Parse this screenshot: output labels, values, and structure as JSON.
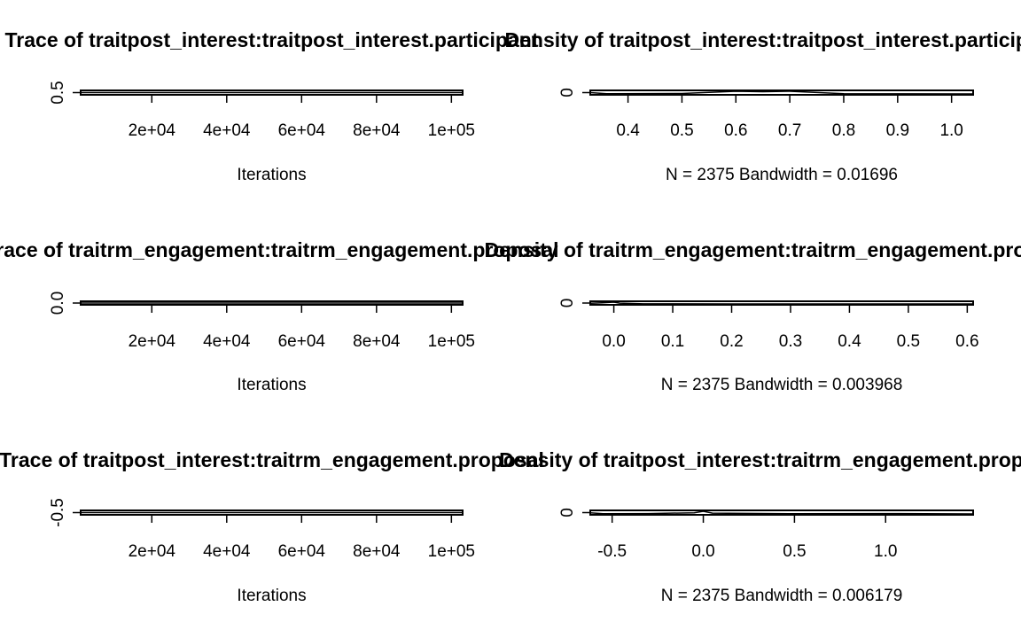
{
  "chart_data": [
    {
      "type": "line",
      "title": "Trace of traitpost_interest:traitpost_interest.participant",
      "xlabel": "Iterations",
      "ylabel": "",
      "xlim": [
        1000,
        103000
      ],
      "x_ticks": [
        20000,
        40000,
        60000,
        80000,
        100000
      ],
      "x_tick_labels": [
        "2e+04",
        "4e+04",
        "6e+04",
        "8e+04",
        "1e+05"
      ],
      "y_ticks": [
        0.5
      ],
      "y_tick_labels": [
        "0.5"
      ],
      "series": [
        {
          "x": [
            1000,
            30000,
            60000,
            90000,
            103000
          ],
          "values": [
            0.5,
            0.5,
            0.5,
            0.5,
            0.5
          ]
        }
      ]
    },
    {
      "type": "line",
      "title": "Density of traitpost_interest:traitpost_interest.participant",
      "xlabel": "N = 2375   Bandwidth = 0.01696",
      "ylabel": "",
      "xlim": [
        0.33,
        1.04
      ],
      "x_ticks": [
        0.4,
        0.5,
        0.6,
        0.7,
        0.8,
        0.9,
        1.0
      ],
      "x_tick_labels": [
        "0.4",
        "0.5",
        "0.6",
        "0.7",
        "0.8",
        "0.9",
        "1.0"
      ],
      "y_ticks": [
        0
      ],
      "y_tick_labels": [
        "0"
      ],
      "series": [
        {
          "x": [
            0.33,
            0.36,
            0.5,
            0.6,
            0.65,
            0.7,
            0.8,
            1.04
          ],
          "values": [
            0.3,
            0.05,
            0.1,
            0.6,
            0.5,
            0.6,
            0.05,
            0
          ]
        }
      ]
    },
    {
      "type": "line",
      "title": "Trace of traitrm_engagement:traitrm_engagement.proposal",
      "xlabel": "Iterations",
      "ylabel": "",
      "xlim": [
        1000,
        103000
      ],
      "x_ticks": [
        20000,
        40000,
        60000,
        80000,
        100000
      ],
      "x_tick_labels": [
        "2e+04",
        "4e+04",
        "6e+04",
        "8e+04",
        "1e+05"
      ],
      "y_ticks": [
        0.0
      ],
      "y_tick_labels": [
        "0.0"
      ],
      "series": [
        {
          "x": [
            1000,
            30000,
            60000,
            90000,
            103000
          ],
          "values": [
            0,
            0,
            0,
            0,
            0
          ]
        }
      ]
    },
    {
      "type": "line",
      "title": "Density of traitrm_engagement:traitrm_engagement.proposal",
      "xlabel": "N = 2375   Bandwidth = 0.003968",
      "ylabel": "",
      "xlim": [
        -0.04,
        0.61
      ],
      "x_ticks": [
        0.0,
        0.1,
        0.2,
        0.3,
        0.4,
        0.5,
        0.6
      ],
      "x_tick_labels": [
        "0.0",
        "0.1",
        "0.2",
        "0.3",
        "0.4",
        "0.5",
        "0.6"
      ],
      "y_ticks": [
        0
      ],
      "y_tick_labels": [
        "0"
      ],
      "series": [
        {
          "x": [
            -0.04,
            -0.02,
            0.0,
            0.01,
            0.05,
            0.2,
            0.61
          ],
          "values": [
            0.3,
            0.6,
            0.9,
            0.4,
            0.05,
            0.01,
            0
          ]
        }
      ]
    },
    {
      "type": "line",
      "title": "Trace of traitpost_interest:traitrm_engagement.proposal",
      "xlabel": "Iterations",
      "ylabel": "",
      "xlim": [
        1000,
        103000
      ],
      "x_ticks": [
        20000,
        40000,
        60000,
        80000,
        100000
      ],
      "x_tick_labels": [
        "2e+04",
        "4e+04",
        "6e+04",
        "8e+04",
        "1e+05"
      ],
      "y_ticks": [
        -0.5
      ],
      "y_tick_labels": [
        "-0.5"
      ],
      "series": [
        {
          "x": [
            1000,
            30000,
            60000,
            90000,
            103000
          ],
          "values": [
            -0.5,
            -0.5,
            -0.5,
            -0.5,
            -0.5
          ]
        }
      ]
    },
    {
      "type": "line",
      "title": "Density of traitpost_interest:traitrm_engagement.proposal",
      "xlabel": "N = 2375   Bandwidth = 0.006179",
      "ylabel": "",
      "xlim": [
        -0.62,
        1.48
      ],
      "x_ticks": [
        -0.5,
        0.0,
        0.5,
        1.0
      ],
      "x_tick_labels": [
        "-0.5",
        "0.0",
        "0.5",
        "1.0"
      ],
      "y_ticks": [
        0
      ],
      "y_tick_labels": [
        "0"
      ],
      "series": [
        {
          "x": [
            -0.62,
            -0.55,
            -0.3,
            -0.05,
            0.0,
            0.05,
            0.5,
            1.0,
            1.48
          ],
          "values": [
            0.3,
            0.05,
            0.1,
            0.3,
            0.7,
            0.2,
            0.05,
            0.1,
            0
          ]
        }
      ]
    }
  ]
}
